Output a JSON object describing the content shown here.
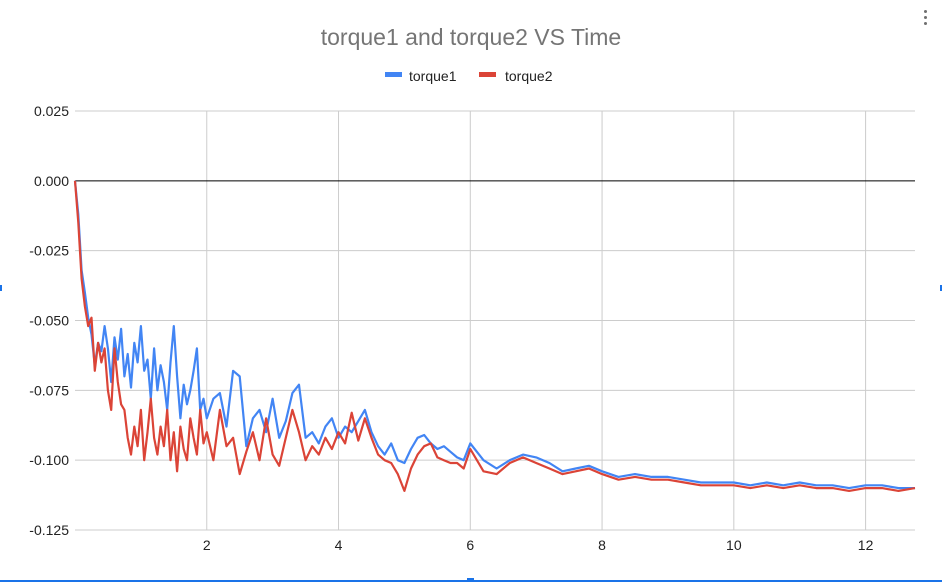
{
  "chart_data": {
    "type": "line",
    "title": "torque1 and torque2 VS Time",
    "xlabel": "",
    "ylabel": "",
    "xlim": [
      0,
      12.75
    ],
    "ylim": [
      -0.125,
      0.025
    ],
    "x_ticks": [
      2,
      4,
      6,
      8,
      10,
      12
    ],
    "y_ticks": [
      0.025,
      0.0,
      -0.025,
      -0.05,
      -0.075,
      -0.1,
      -0.125
    ],
    "y_tick_labels": [
      "0.025",
      "0.000",
      "-0.025",
      "-0.050",
      "-0.075",
      "-0.100",
      "-0.125"
    ],
    "grid": true,
    "legend": "top-center",
    "colors": {
      "torque1": "#4285f4",
      "torque2": "#db4437",
      "zero_line": "#000000",
      "grid": "#cccccc"
    },
    "series": [
      {
        "name": "torque1",
        "x": [
          0,
          0.05,
          0.1,
          0.15,
          0.2,
          0.25,
          0.3,
          0.35,
          0.4,
          0.45,
          0.5,
          0.55,
          0.6,
          0.65,
          0.7,
          0.75,
          0.8,
          0.85,
          0.9,
          0.95,
          1.0,
          1.05,
          1.1,
          1.15,
          1.2,
          1.25,
          1.3,
          1.35,
          1.4,
          1.45,
          1.5,
          1.55,
          1.6,
          1.65,
          1.7,
          1.75,
          1.8,
          1.85,
          1.9,
          1.95,
          2.0,
          2.1,
          2.2,
          2.3,
          2.4,
          2.5,
          2.6,
          2.7,
          2.8,
          2.9,
          3.0,
          3.1,
          3.2,
          3.3,
          3.4,
          3.5,
          3.6,
          3.7,
          3.8,
          3.9,
          4.0,
          4.1,
          4.2,
          4.3,
          4.4,
          4.5,
          4.6,
          4.7,
          4.8,
          4.9,
          5.0,
          5.1,
          5.2,
          5.3,
          5.4,
          5.5,
          5.6,
          5.7,
          5.8,
          5.9,
          6.0,
          6.2,
          6.4,
          6.6,
          6.8,
          7.0,
          7.2,
          7.4,
          7.6,
          7.8,
          8.0,
          8.25,
          8.5,
          8.75,
          9.0,
          9.25,
          9.5,
          9.75,
          10.0,
          10.25,
          10.5,
          10.75,
          11.0,
          11.25,
          11.5,
          11.75,
          12.0,
          12.25,
          12.5,
          12.75
        ],
        "values": [
          0.0,
          -0.012,
          -0.032,
          -0.04,
          -0.049,
          -0.055,
          -0.066,
          -0.058,
          -0.061,
          -0.052,
          -0.06,
          -0.072,
          -0.056,
          -0.064,
          -0.053,
          -0.07,
          -0.062,
          -0.074,
          -0.058,
          -0.065,
          -0.052,
          -0.068,
          -0.064,
          -0.078,
          -0.06,
          -0.075,
          -0.066,
          -0.072,
          -0.082,
          -0.065,
          -0.052,
          -0.07,
          -0.085,
          -0.073,
          -0.08,
          -0.075,
          -0.068,
          -0.06,
          -0.082,
          -0.078,
          -0.085,
          -0.078,
          -0.076,
          -0.088,
          -0.068,
          -0.07,
          -0.095,
          -0.085,
          -0.082,
          -0.09,
          -0.078,
          -0.092,
          -0.086,
          -0.076,
          -0.073,
          -0.092,
          -0.09,
          -0.094,
          -0.088,
          -0.085,
          -0.092,
          -0.088,
          -0.09,
          -0.086,
          -0.082,
          -0.09,
          -0.095,
          -0.098,
          -0.094,
          -0.1,
          -0.101,
          -0.096,
          -0.092,
          -0.091,
          -0.094,
          -0.096,
          -0.095,
          -0.097,
          -0.099,
          -0.1,
          -0.094,
          -0.1,
          -0.103,
          -0.1,
          -0.098,
          -0.099,
          -0.101,
          -0.104,
          -0.103,
          -0.102,
          -0.104,
          -0.106,
          -0.105,
          -0.106,
          -0.106,
          -0.107,
          -0.108,
          -0.108,
          -0.108,
          -0.109,
          -0.108,
          -0.109,
          -0.108,
          -0.109,
          -0.109,
          -0.11,
          -0.109,
          -0.109,
          -0.11,
          -0.11
        ]
      },
      {
        "name": "torque2",
        "x": [
          0,
          0.05,
          0.1,
          0.15,
          0.2,
          0.25,
          0.3,
          0.35,
          0.4,
          0.45,
          0.5,
          0.55,
          0.6,
          0.65,
          0.7,
          0.75,
          0.8,
          0.85,
          0.9,
          0.95,
          1.0,
          1.05,
          1.1,
          1.15,
          1.2,
          1.25,
          1.3,
          1.35,
          1.4,
          1.45,
          1.5,
          1.55,
          1.6,
          1.65,
          1.7,
          1.75,
          1.8,
          1.85,
          1.9,
          1.95,
          2.0,
          2.1,
          2.2,
          2.3,
          2.4,
          2.5,
          2.6,
          2.7,
          2.8,
          2.9,
          3.0,
          3.1,
          3.2,
          3.3,
          3.4,
          3.5,
          3.6,
          3.7,
          3.8,
          3.9,
          4.0,
          4.1,
          4.2,
          4.3,
          4.4,
          4.5,
          4.6,
          4.7,
          4.8,
          4.9,
          5.0,
          5.1,
          5.2,
          5.3,
          5.4,
          5.5,
          5.6,
          5.7,
          5.8,
          5.9,
          6.0,
          6.2,
          6.4,
          6.6,
          6.8,
          7.0,
          7.2,
          7.4,
          7.6,
          7.8,
          8.0,
          8.25,
          8.5,
          8.75,
          9.0,
          9.25,
          9.5,
          9.75,
          10.0,
          10.25,
          10.5,
          10.75,
          11.0,
          11.25,
          11.5,
          11.75,
          12.0,
          12.25,
          12.5,
          12.75
        ],
        "values": [
          0.0,
          -0.015,
          -0.035,
          -0.045,
          -0.052,
          -0.049,
          -0.068,
          -0.058,
          -0.065,
          -0.06,
          -0.075,
          -0.082,
          -0.06,
          -0.072,
          -0.08,
          -0.082,
          -0.092,
          -0.098,
          -0.088,
          -0.095,
          -0.082,
          -0.1,
          -0.09,
          -0.078,
          -0.092,
          -0.098,
          -0.088,
          -0.095,
          -0.082,
          -0.1,
          -0.09,
          -0.104,
          -0.088,
          -0.096,
          -0.1,
          -0.085,
          -0.092,
          -0.098,
          -0.082,
          -0.094,
          -0.09,
          -0.1,
          -0.082,
          -0.095,
          -0.092,
          -0.105,
          -0.097,
          -0.09,
          -0.1,
          -0.085,
          -0.098,
          -0.102,
          -0.092,
          -0.082,
          -0.09,
          -0.1,
          -0.095,
          -0.098,
          -0.092,
          -0.096,
          -0.09,
          -0.094,
          -0.083,
          -0.093,
          -0.085,
          -0.092,
          -0.098,
          -0.1,
          -0.101,
          -0.105,
          -0.111,
          -0.103,
          -0.098,
          -0.095,
          -0.094,
          -0.099,
          -0.1,
          -0.101,
          -0.101,
          -0.103,
          -0.096,
          -0.104,
          -0.105,
          -0.101,
          -0.099,
          -0.101,
          -0.103,
          -0.105,
          -0.104,
          -0.103,
          -0.105,
          -0.107,
          -0.106,
          -0.107,
          -0.107,
          -0.108,
          -0.109,
          -0.109,
          -0.109,
          -0.11,
          -0.109,
          -0.11,
          -0.109,
          -0.11,
          -0.11,
          -0.111,
          -0.11,
          -0.11,
          -0.111,
          -0.11
        ]
      }
    ]
  }
}
